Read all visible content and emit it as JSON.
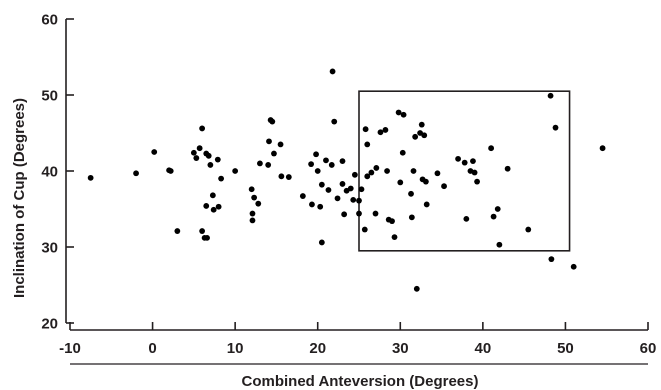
{
  "chart_data": {
    "type": "scatter",
    "xlabel": "Combined Anteversion (Degrees)",
    "ylabel": "Inclination of Cup (Degrees)",
    "xlim": [
      -10,
      60
    ],
    "ylim": [
      20,
      60
    ],
    "xticks": [
      -10,
      0,
      10,
      20,
      30,
      40,
      50,
      60
    ],
    "yticks": [
      20,
      30,
      40,
      50,
      60
    ],
    "grid": false,
    "marker_color": "#000000",
    "axis_color": "#231f20",
    "annotation_box": {
      "x": [
        25,
        50.5
      ],
      "y": [
        29.5,
        50.5
      ]
    },
    "points": [
      {
        "x": -7.5,
        "y": 39.1
      },
      {
        "x": -2.0,
        "y": 39.7
      },
      {
        "x": 0.2,
        "y": 42.5
      },
      {
        "x": 2.0,
        "y": 40.1
      },
      {
        "x": 2.2,
        "y": 40.0
      },
      {
        "x": 3.0,
        "y": 32.1
      },
      {
        "x": 5.0,
        "y": 42.4
      },
      {
        "x": 5.3,
        "y": 41.7
      },
      {
        "x": 5.7,
        "y": 43.0
      },
      {
        "x": 6.0,
        "y": 45.6
      },
      {
        "x": 6.0,
        "y": 32.1
      },
      {
        "x": 6.3,
        "y": 31.2
      },
      {
        "x": 6.5,
        "y": 42.3
      },
      {
        "x": 6.5,
        "y": 35.4
      },
      {
        "x": 6.6,
        "y": 31.2
      },
      {
        "x": 6.8,
        "y": 42.0
      },
      {
        "x": 7.0,
        "y": 40.8
      },
      {
        "x": 7.3,
        "y": 36.8
      },
      {
        "x": 7.4,
        "y": 34.9
      },
      {
        "x": 7.9,
        "y": 41.5
      },
      {
        "x": 8.0,
        "y": 35.3
      },
      {
        "x": 8.3,
        "y": 39.0
      },
      {
        "x": 10.0,
        "y": 40.0
      },
      {
        "x": 12.0,
        "y": 37.6
      },
      {
        "x": 12.1,
        "y": 34.4
      },
      {
        "x": 12.1,
        "y": 33.5
      },
      {
        "x": 12.3,
        "y": 36.5
      },
      {
        "x": 12.8,
        "y": 35.7
      },
      {
        "x": 13.0,
        "y": 41.0
      },
      {
        "x": 14.0,
        "y": 40.8
      },
      {
        "x": 14.1,
        "y": 43.9
      },
      {
        "x": 14.3,
        "y": 46.7
      },
      {
        "x": 14.5,
        "y": 46.5
      },
      {
        "x": 14.7,
        "y": 42.3
      },
      {
        "x": 15.5,
        "y": 43.5
      },
      {
        "x": 15.6,
        "y": 39.3
      },
      {
        "x": 16.5,
        "y": 39.2
      },
      {
        "x": 18.2,
        "y": 36.7
      },
      {
        "x": 19.2,
        "y": 40.9
      },
      {
        "x": 19.3,
        "y": 35.6
      },
      {
        "x": 19.8,
        "y": 42.2
      },
      {
        "x": 20.0,
        "y": 40.0
      },
      {
        "x": 20.3,
        "y": 35.3
      },
      {
        "x": 20.5,
        "y": 38.2
      },
      {
        "x": 20.5,
        "y": 30.6
      },
      {
        "x": 21.0,
        "y": 41.4
      },
      {
        "x": 21.3,
        "y": 37.5
      },
      {
        "x": 21.7,
        "y": 40.8
      },
      {
        "x": 21.8,
        "y": 53.1
      },
      {
        "x": 22.0,
        "y": 46.5
      },
      {
        "x": 22.4,
        "y": 36.4
      },
      {
        "x": 23.0,
        "y": 41.3
      },
      {
        "x": 23.0,
        "y": 38.3
      },
      {
        "x": 23.2,
        "y": 34.3
      },
      {
        "x": 23.5,
        "y": 37.4
      },
      {
        "x": 24.0,
        "y": 37.7
      },
      {
        "x": 24.3,
        "y": 36.2
      },
      {
        "x": 24.5,
        "y": 39.5
      },
      {
        "x": 25.0,
        "y": 36.1
      },
      {
        "x": 25.0,
        "y": 34.4
      },
      {
        "x": 25.3,
        "y": 37.6
      },
      {
        "x": 25.7,
        "y": 32.3
      },
      {
        "x": 25.8,
        "y": 45.5
      },
      {
        "x": 26.0,
        "y": 43.5
      },
      {
        "x": 26.0,
        "y": 39.3
      },
      {
        "x": 26.5,
        "y": 39.8
      },
      {
        "x": 27.0,
        "y": 34.4
      },
      {
        "x": 27.1,
        "y": 40.4
      },
      {
        "x": 27.6,
        "y": 45.1
      },
      {
        "x": 28.2,
        "y": 45.4
      },
      {
        "x": 28.4,
        "y": 40.0
      },
      {
        "x": 28.6,
        "y": 33.6
      },
      {
        "x": 29.0,
        "y": 33.4
      },
      {
        "x": 29.3,
        "y": 31.3
      },
      {
        "x": 29.8,
        "y": 47.7
      },
      {
        "x": 30.0,
        "y": 38.5
      },
      {
        "x": 30.3,
        "y": 42.4
      },
      {
        "x": 30.4,
        "y": 47.4
      },
      {
        "x": 31.3,
        "y": 37.0
      },
      {
        "x": 31.4,
        "y": 33.9
      },
      {
        "x": 31.6,
        "y": 40.0
      },
      {
        "x": 31.8,
        "y": 44.5
      },
      {
        "x": 32.0,
        "y": 24.5
      },
      {
        "x": 32.4,
        "y": 45.0
      },
      {
        "x": 32.6,
        "y": 46.1
      },
      {
        "x": 32.7,
        "y": 38.9
      },
      {
        "x": 32.9,
        "y": 44.7
      },
      {
        "x": 33.1,
        "y": 38.6
      },
      {
        "x": 33.2,
        "y": 35.6
      },
      {
        "x": 34.5,
        "y": 39.7
      },
      {
        "x": 35.3,
        "y": 38.0
      },
      {
        "x": 37.0,
        "y": 41.6
      },
      {
        "x": 37.8,
        "y": 41.1
      },
      {
        "x": 38.0,
        "y": 33.7
      },
      {
        "x": 38.5,
        "y": 40.0
      },
      {
        "x": 38.8,
        "y": 41.3
      },
      {
        "x": 39.0,
        "y": 39.8
      },
      {
        "x": 39.3,
        "y": 38.6
      },
      {
        "x": 41.0,
        "y": 43.0
      },
      {
        "x": 41.3,
        "y": 34.0
      },
      {
        "x": 41.8,
        "y": 35.0
      },
      {
        "x": 42.0,
        "y": 30.3
      },
      {
        "x": 43.0,
        "y": 40.3
      },
      {
        "x": 45.5,
        "y": 32.3
      },
      {
        "x": 48.2,
        "y": 49.9
      },
      {
        "x": 48.3,
        "y": 28.4
      },
      {
        "x": 48.8,
        "y": 45.7
      },
      {
        "x": 51.0,
        "y": 27.4
      },
      {
        "x": 54.5,
        "y": 43.0
      }
    ]
  }
}
